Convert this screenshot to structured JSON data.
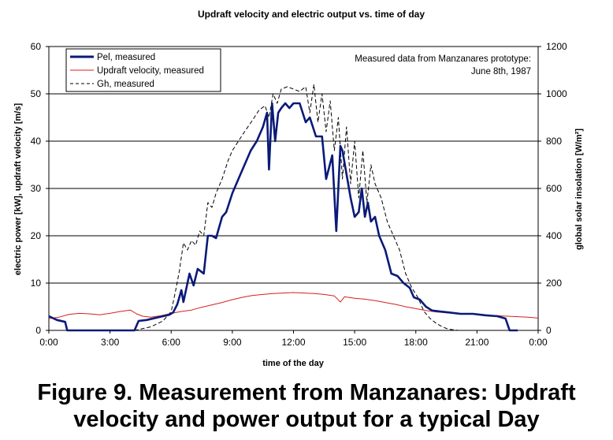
{
  "chart_data": {
    "type": "line",
    "title": "Updraft velocity and electric output vs. time of day",
    "xlabel": "time of the day",
    "ylabel_left": "electric power [kW], updraft velocity [m/s]",
    "ylabel_right": "global solar insolation [W/m²]",
    "x_range_hours": [
      0,
      24
    ],
    "x_ticks": [
      "0:00",
      "3:00",
      "6:00",
      "9:00",
      "12:00",
      "15:00",
      "18:00",
      "21:00",
      "0:00"
    ],
    "ylim_left": [
      0,
      60
    ],
    "y_ticks_left": [
      "0",
      "10",
      "20",
      "30",
      "40",
      "50",
      "60"
    ],
    "ylim_right": [
      0,
      1200
    ],
    "y_ticks_right": [
      "0",
      "200",
      "400",
      "600",
      "800",
      "1000",
      "1200"
    ],
    "grid": "horizontal",
    "annotation": [
      "Measured data from Manzanares prototype:",
      "June 8th, 1987"
    ],
    "legend_position": "top-left",
    "series": [
      {
        "name": "Pel, measured",
        "axis": "left",
        "color": "#0a1a78",
        "style": "thick-solid",
        "x": [
          0,
          0.4,
          0.8,
          0.9,
          4.2,
          4.4,
          4.8,
          5.2,
          5.6,
          5.9,
          6.1,
          6.3,
          6.5,
          6.6,
          6.9,
          7.1,
          7.3,
          7.6,
          7.8,
          8.0,
          8.2,
          8.5,
          8.7,
          9.0,
          9.3,
          9.6,
          9.9,
          10.2,
          10.5,
          10.7,
          10.8,
          10.95,
          11.1,
          11.25,
          11.4,
          11.6,
          11.8,
          12.0,
          12.3,
          12.6,
          12.8,
          13.1,
          13.4,
          13.6,
          13.9,
          14.1,
          14.3,
          14.4,
          14.6,
          14.8,
          15.0,
          15.2,
          15.35,
          15.5,
          15.65,
          15.8,
          16.0,
          16.2,
          16.5,
          16.8,
          17.1,
          17.4,
          17.7,
          17.9,
          18.2,
          18.5,
          18.8,
          19.2,
          19.6,
          20.2,
          20.8,
          21.4,
          22.0,
          22.4,
          22.6,
          22.8,
          23.0
        ],
        "values": [
          3,
          2.2,
          1.8,
          0,
          0,
          2,
          2.2,
          2.6,
          3,
          3.3,
          3.8,
          5.5,
          8.5,
          6,
          12,
          9.5,
          13,
          12,
          20,
          20,
          19.5,
          24,
          25,
          29,
          32,
          35,
          38,
          40,
          43,
          46,
          34,
          48,
          40,
          46,
          47,
          48,
          47,
          48,
          48,
          44,
          45,
          41,
          41,
          32,
          37,
          21,
          39,
          38,
          33,
          28,
          24,
          25,
          30,
          24,
          27,
          23,
          24,
          20,
          17,
          12,
          11.5,
          10,
          9,
          7,
          6.5,
          5,
          4.2,
          4,
          3.8,
          3.5,
          3.5,
          3.2,
          3,
          2.5,
          0,
          0,
          0
        ]
      },
      {
        "name": "Updraft velocity, measured",
        "axis": "left",
        "color": "#d62020",
        "style": "thin-solid",
        "x": [
          0,
          0.5,
          1.0,
          1.5,
          2.0,
          2.5,
          3.0,
          3.5,
          4.0,
          4.3,
          4.6,
          5.0,
          5.5,
          6.0,
          6.5,
          7.0,
          7.5,
          8.0,
          8.5,
          9.0,
          9.5,
          10.0,
          10.5,
          11.0,
          11.5,
          12.0,
          12.5,
          13.0,
          13.5,
          14.0,
          14.3,
          14.5,
          15.0,
          15.5,
          16.0,
          16.5,
          17.0,
          17.5,
          18.0,
          18.5,
          19.0,
          19.5,
          20.0,
          20.5,
          21.0,
          21.5,
          22.0,
          22.5,
          23.0,
          23.5,
          24.0
        ],
        "values": [
          2.5,
          2.8,
          3.4,
          3.6,
          3.5,
          3.3,
          3.6,
          4.0,
          4.3,
          3.5,
          3.0,
          2.8,
          3.1,
          3.6,
          4.0,
          4.3,
          4.9,
          5.4,
          5.9,
          6.5,
          7.0,
          7.4,
          7.6,
          7.8,
          7.9,
          8.0,
          7.9,
          7.8,
          7.6,
          7.3,
          6.0,
          7.1,
          6.8,
          6.6,
          6.3,
          5.9,
          5.5,
          5.0,
          4.6,
          4.2,
          3.9,
          3.7,
          3.6,
          3.5,
          3.4,
          3.2,
          3.1,
          3.0,
          2.9,
          2.8,
          2.6
        ]
      },
      {
        "name": "Gh, measured",
        "axis": "right",
        "color": "#000000",
        "style": "dashed",
        "x": [
          4.2,
          5.0,
          5.6,
          6.0,
          6.2,
          6.4,
          6.6,
          6.8,
          7.0,
          7.2,
          7.4,
          7.6,
          7.8,
          8.0,
          8.2,
          8.5,
          8.8,
          9.0,
          9.3,
          9.6,
          10.0,
          10.3,
          10.6,
          10.8,
          11.0,
          11.2,
          11.4,
          11.7,
          12.0,
          12.3,
          12.6,
          12.8,
          13.0,
          13.2,
          13.4,
          13.6,
          13.8,
          14.0,
          14.2,
          14.4,
          14.6,
          14.8,
          15.0,
          15.2,
          15.4,
          15.6,
          15.8,
          16.0,
          16.3,
          16.6,
          16.9,
          17.2,
          17.5,
          17.8,
          18.1,
          18.4,
          18.7,
          19.0,
          19.3,
          19.6,
          19.9,
          20.1
        ],
        "values": [
          0,
          15,
          40,
          80,
          160,
          250,
          370,
          340,
          380,
          360,
          420,
          400,
          540,
          520,
          580,
          640,
          720,
          760,
          800,
          840,
          890,
          930,
          950,
          900,
          1000,
          960,
          1020,
          1030,
          1020,
          1010,
          1030,
          920,
          1040,
          880,
          1000,
          840,
          970,
          760,
          900,
          640,
          860,
          620,
          800,
          560,
          760,
          540,
          700,
          620,
          560,
          460,
          400,
          340,
          240,
          180,
          140,
          80,
          50,
          30,
          15,
          5,
          2,
          0
        ]
      }
    ]
  },
  "caption": {
    "line1": "Figure 9. Measurement from Manzanares: Updraft",
    "line2": "velocity and power output for a typical Day"
  }
}
